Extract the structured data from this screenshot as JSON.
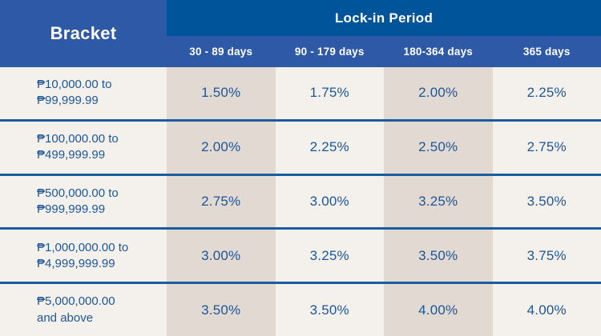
{
  "chart_data": {
    "type": "table",
    "title": "Lock-in Period",
    "corner_header": "Bracket",
    "columns": [
      "30 - 89 days",
      "90 - 179 days",
      "180-364 days",
      "365 days"
    ],
    "rows": [
      {
        "bracket_line1": "₱10,000.00 to",
        "bracket_line2": "₱99,999.99",
        "rates": [
          "1.50%",
          "1.75%",
          "2.00%",
          "2.25%"
        ]
      },
      {
        "bracket_line1": "₱100,000.00 to",
        "bracket_line2": "₱499,999.99",
        "rates": [
          "2.00%",
          "2.25%",
          "2.50%",
          "2.75%"
        ]
      },
      {
        "bracket_line1": "₱500,000.00 to",
        "bracket_line2": "₱999,999.99",
        "rates": [
          "2.75%",
          "3.00%",
          "3.25%",
          "3.50%"
        ]
      },
      {
        "bracket_line1": "₱1,000,000.00 to",
        "bracket_line2": "₱4,999,999.99",
        "rates": [
          "3.00%",
          "3.25%",
          "3.50%",
          "3.75%"
        ]
      },
      {
        "bracket_line1": "₱5,000,000.00",
        "bracket_line2": "and above",
        "rates": [
          "3.50%",
          "3.50%",
          "4.00%",
          "4.00%"
        ]
      }
    ],
    "colors": {
      "header_dark_blue": "#00549a",
      "header_blue": "#2e59a6",
      "cell_beige": "#e1d9d2",
      "cell_offwhite": "#f4f1ec",
      "text_blue": "#1d5697",
      "divider_blue": "#1a5c9f"
    }
  }
}
